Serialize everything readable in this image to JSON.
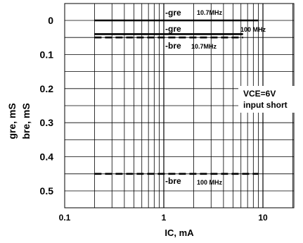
{
  "chart_data": {
    "type": "line",
    "x_scale": "log",
    "y_inverted": true,
    "xlim": [
      0.1,
      20
    ],
    "ylim": [
      0,
      0.55
    ],
    "grid": true,
    "x_ticks": [
      {
        "value": 0.1,
        "label": "0.1"
      },
      {
        "value": 1,
        "label": "1"
      },
      {
        "value": 10,
        "label": "10"
      }
    ],
    "y_ticks": [
      {
        "value": 0,
        "label": "0"
      },
      {
        "value": 0.1,
        "label": "0.1"
      },
      {
        "value": 0.2,
        "label": "0.2"
      },
      {
        "value": 0.3,
        "label": "0.3"
      },
      {
        "value": 0.4,
        "label": "0.4"
      },
      {
        "value": 0.5,
        "label": "0.5"
      }
    ],
    "ylabel_line1": "gre, mS",
    "ylabel_line2": "bre, mS",
    "xlabel": "IC, mA",
    "annotation_line1": "VCE=6V",
    "annotation_line2": "input short",
    "series": [
      {
        "name": "-gre 10.7MHz",
        "style": "solid",
        "x": [
          0.2,
          9
        ],
        "y": [
          0.0,
          0.0
        ]
      },
      {
        "name": "-gre 100 MHz",
        "style": "solid",
        "x": [
          0.2,
          6.3
        ],
        "y": [
          0.04,
          0.04
        ]
      },
      {
        "name": "-bre 10.7MHz",
        "style": "dashed",
        "x": [
          0.2,
          6.3
        ],
        "y": [
          0.05,
          0.05
        ]
      },
      {
        "name": "-bre 100 MHz",
        "style": "dashed",
        "x": [
          0.2,
          9
        ],
        "y": [
          0.45,
          0.45
        ]
      }
    ],
    "series_labels": [
      {
        "main": "-gre",
        "sub": "10.7MHz"
      },
      {
        "main": "-gre",
        "sub": "100 MHz"
      },
      {
        "main": "-bre",
        "sub": "10.7MHz"
      },
      {
        "main": "-bre",
        "sub": "100 MHz"
      }
    ]
  }
}
